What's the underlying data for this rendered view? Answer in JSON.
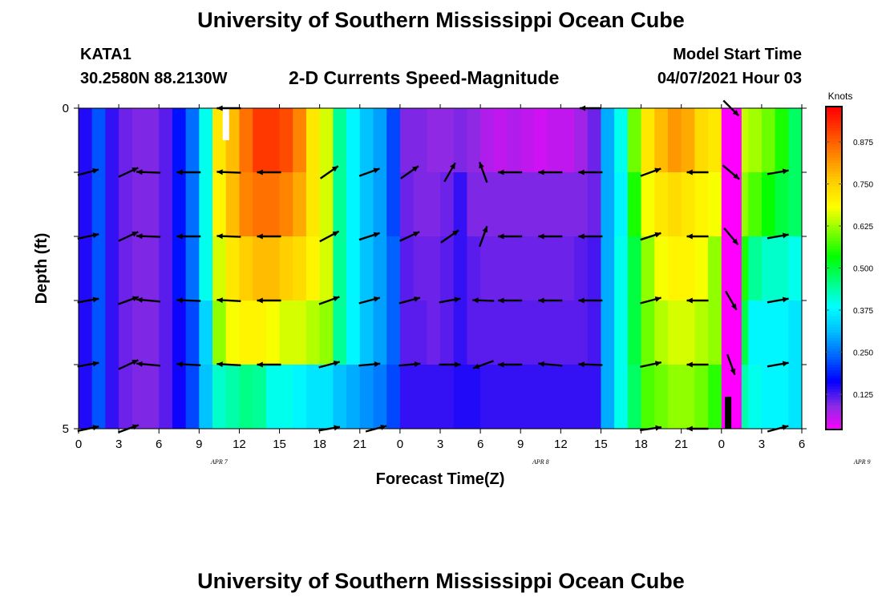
{
  "header": {
    "title": "University of Southern Mississippi Ocean Cube",
    "station": "KATA1",
    "coords": "30.2580N  88.2130W",
    "chart_title": "2-D Currents Speed-Magnitude",
    "model_label": "Model Start Time",
    "model_time": "04/07/2021 Hour 03"
  },
  "footer": {
    "title": "University of Southern Mississippi Ocean Cube"
  },
  "colors": {
    "ramp": [
      "#ff00ff",
      "#8a2be2",
      "#0000ff",
      "#0064ff",
      "#00bfff",
      "#00ffff",
      "#00ff80",
      "#00ff00",
      "#80ff00",
      "#ffff00",
      "#ffd000",
      "#ff8c00",
      "#ff4500",
      "#ff0000"
    ],
    "arrow": "#000000"
  },
  "chart_data": {
    "type": "heatmap",
    "xlabel": "Forecast Time(Z)",
    "ylabel": "Depth (ft)",
    "colorbar_label": "Knots",
    "colorbar_ticks": [
      "0.125",
      "0.250",
      "0.375",
      "0.500",
      "0.625",
      "0.750",
      "0.875"
    ],
    "colorbar_values": [
      0.125,
      0.25,
      0.375,
      0.5,
      0.625,
      0.75,
      0.875
    ],
    "colorbar_range": [
      0.02,
      0.98
    ],
    "x_tick_labels": [
      "0",
      "3",
      "6",
      "9",
      "12",
      "15",
      "18",
      "21",
      "0",
      "3",
      "6",
      "9",
      "12",
      "15",
      "18",
      "21",
      "0",
      "3",
      "6"
    ],
    "date_labels": [
      {
        "text": "APR 7",
        "hour": 10.5
      },
      {
        "text": "APR 8",
        "hour": 34.5
      },
      {
        "text": "APR 9",
        "hour": 58.5
      }
    ],
    "y_tick_labels": [
      "0",
      "5"
    ],
    "xlim": [
      0,
      54
    ],
    "ylim": [
      0,
      5
    ],
    "depth_bands": 5,
    "hours": [
      0,
      1,
      2,
      3,
      4,
      5,
      6,
      7,
      8,
      9,
      10,
      11,
      12,
      13,
      14,
      15,
      16,
      17,
      18,
      19,
      20,
      21,
      22,
      23,
      24,
      25,
      26,
      27,
      28,
      29,
      30,
      31,
      32,
      33,
      34,
      35,
      36,
      37,
      38,
      39,
      40,
      41,
      42,
      43,
      44,
      45,
      46,
      47,
      48,
      49,
      50,
      51,
      52,
      53
    ],
    "speed_knots": [
      [
        0.15,
        0.23,
        0.14,
        0.11,
        0.1,
        0.1,
        0.12,
        0.18,
        0.25,
        0.4,
        0.72,
        0.78,
        0.86,
        0.92,
        0.92,
        0.9,
        0.84,
        0.72,
        0.66,
        0.45,
        0.38,
        0.32,
        0.29,
        0.22,
        0.1,
        0.1,
        0.09,
        0.09,
        0.1,
        0.09,
        0.07,
        0.06,
        0.07,
        0.06,
        0.05,
        0.06,
        0.06,
        0.08,
        0.11,
        0.3,
        0.4,
        0.6,
        0.72,
        0.78,
        0.82,
        0.8,
        0.74,
        0.72,
        0.7,
        0.65,
        0.63,
        0.6,
        0.55,
        0.48
      ],
      [
        0.15,
        0.23,
        0.14,
        0.11,
        0.1,
        0.1,
        0.12,
        0.18,
        0.25,
        0.4,
        0.7,
        0.78,
        0.84,
        0.86,
        0.86,
        0.84,
        0.8,
        0.72,
        0.66,
        0.45,
        0.38,
        0.32,
        0.29,
        0.22,
        0.11,
        0.1,
        0.1,
        0.11,
        0.14,
        0.1,
        0.1,
        0.1,
        0.1,
        0.1,
        0.1,
        0.1,
        0.1,
        0.1,
        0.11,
        0.3,
        0.38,
        0.55,
        0.68,
        0.72,
        0.74,
        0.72,
        0.7,
        0.68,
        0.66,
        0.62,
        0.58,
        0.54,
        0.5,
        0.48
      ],
      [
        0.15,
        0.23,
        0.14,
        0.11,
        0.1,
        0.1,
        0.12,
        0.18,
        0.25,
        0.4,
        0.66,
        0.72,
        0.76,
        0.78,
        0.78,
        0.76,
        0.74,
        0.7,
        0.66,
        0.45,
        0.38,
        0.32,
        0.29,
        0.24,
        0.12,
        0.11,
        0.11,
        0.12,
        0.14,
        0.12,
        0.11,
        0.11,
        0.11,
        0.11,
        0.11,
        0.11,
        0.11,
        0.12,
        0.13,
        0.3,
        0.4,
        0.5,
        0.62,
        0.68,
        0.7,
        0.7,
        0.68,
        0.62,
        0.62,
        0.55,
        0.45,
        0.42,
        0.42,
        0.4
      ],
      [
        0.15,
        0.23,
        0.14,
        0.11,
        0.1,
        0.1,
        0.12,
        0.16,
        0.22,
        0.34,
        0.62,
        0.68,
        0.7,
        0.7,
        0.68,
        0.66,
        0.66,
        0.64,
        0.62,
        0.45,
        0.38,
        0.32,
        0.29,
        0.24,
        0.12,
        0.12,
        0.11,
        0.12,
        0.14,
        0.12,
        0.12,
        0.12,
        0.12,
        0.12,
        0.12,
        0.12,
        0.12,
        0.12,
        0.13,
        0.3,
        0.4,
        0.5,
        0.6,
        0.64,
        0.66,
        0.66,
        0.64,
        0.62,
        0.58,
        0.5,
        0.38,
        0.38,
        0.38,
        0.36
      ],
      [
        0.15,
        0.23,
        0.14,
        0.11,
        0.1,
        0.1,
        0.12,
        0.16,
        0.22,
        0.32,
        0.42,
        0.44,
        0.46,
        0.45,
        0.4,
        0.4,
        0.38,
        0.36,
        0.36,
        0.32,
        0.3,
        0.28,
        0.26,
        0.22,
        0.14,
        0.14,
        0.14,
        0.14,
        0.15,
        0.15,
        0.14,
        0.14,
        0.14,
        0.14,
        0.14,
        0.14,
        0.14,
        0.14,
        0.14,
        0.3,
        0.4,
        0.48,
        0.58,
        0.6,
        0.62,
        0.62,
        0.6,
        0.56,
        0.52,
        0.44,
        0.4,
        0.38,
        0.38,
        0.36
      ]
    ],
    "low_speed_column": {
      "hour_start": 48.0,
      "hour_end": 49.5,
      "speed_knots": 0.02
    },
    "markers": [
      {
        "hour": 11.0,
        "depth_start": 0.0,
        "depth_end": 0.5,
        "color": "#ffffff"
      },
      {
        "hour": 48.5,
        "depth_start": 4.5,
        "depth_end": 5.0,
        "color": "#000000"
      }
    ],
    "vectors": [
      {
        "hour": 0,
        "depth": 1,
        "angle_deg": 15,
        "length": 0.9
      },
      {
        "hour": 0,
        "depth": 2,
        "angle_deg": 12,
        "length": 0.9
      },
      {
        "hour": 0,
        "depth": 3,
        "angle_deg": 10,
        "length": 0.9
      },
      {
        "hour": 0,
        "depth": 4,
        "angle_deg": 10,
        "length": 0.9
      },
      {
        "hour": 0,
        "depth": 5,
        "angle_deg": 12,
        "length": 0.9
      },
      {
        "hour": 3,
        "depth": 1,
        "angle_deg": 25,
        "length": 0.9
      },
      {
        "hour": 3,
        "depth": 2,
        "angle_deg": 25,
        "length": 0.9
      },
      {
        "hour": 3,
        "depth": 3,
        "angle_deg": 20,
        "length": 0.9
      },
      {
        "hour": 3,
        "depth": 4,
        "angle_deg": 25,
        "length": 0.9
      },
      {
        "hour": 3,
        "depth": 5,
        "angle_deg": 20,
        "length": 0.9
      },
      {
        "hour": 4.5,
        "depth": 1,
        "angle_deg": 178,
        "length": 1.0
      },
      {
        "hour": 4.5,
        "depth": 2,
        "angle_deg": 178,
        "length": 1.0
      },
      {
        "hour": 4.5,
        "depth": 3,
        "angle_deg": 175,
        "length": 1.0
      },
      {
        "hour": 4.5,
        "depth": 4,
        "angle_deg": 175,
        "length": 1.0
      },
      {
        "hour": 7.5,
        "depth": 1,
        "angle_deg": 180,
        "length": 1.0
      },
      {
        "hour": 7.5,
        "depth": 2,
        "angle_deg": 180,
        "length": 1.0
      },
      {
        "hour": 7.5,
        "depth": 3,
        "angle_deg": 178,
        "length": 1.0
      },
      {
        "hour": 7.5,
        "depth": 4,
        "angle_deg": 177,
        "length": 1.0
      },
      {
        "hour": 10.5,
        "depth": 0,
        "angle_deg": 180,
        "length": 1.0
      },
      {
        "hour": 10.5,
        "depth": 1,
        "angle_deg": 178,
        "length": 1.0
      },
      {
        "hour": 10.5,
        "depth": 2,
        "angle_deg": 178,
        "length": 1.0
      },
      {
        "hour": 10.5,
        "depth": 3,
        "angle_deg": 177,
        "length": 1.0
      },
      {
        "hour": 10.5,
        "depth": 4,
        "angle_deg": 177,
        "length": 1.0
      },
      {
        "hour": 13.5,
        "depth": 1,
        "angle_deg": 180,
        "length": 1.0
      },
      {
        "hour": 13.5,
        "depth": 2,
        "angle_deg": 180,
        "length": 1.0
      },
      {
        "hour": 13.5,
        "depth": 3,
        "angle_deg": 180,
        "length": 1.0
      },
      {
        "hour": 13.5,
        "depth": 4,
        "angle_deg": 180,
        "length": 1.0
      },
      {
        "hour": 18,
        "depth": 1,
        "angle_deg": 35,
        "length": 0.9
      },
      {
        "hour": 18,
        "depth": 2,
        "angle_deg": 28,
        "length": 0.9
      },
      {
        "hour": 18,
        "depth": 3,
        "angle_deg": 20,
        "length": 0.9
      },
      {
        "hour": 18,
        "depth": 4,
        "angle_deg": 15,
        "length": 0.9
      },
      {
        "hour": 18,
        "depth": 5,
        "angle_deg": 10,
        "length": 0.9
      },
      {
        "hour": 21,
        "depth": 1,
        "angle_deg": 20,
        "length": 0.9
      },
      {
        "hour": 21,
        "depth": 2,
        "angle_deg": 18,
        "length": 0.9
      },
      {
        "hour": 21,
        "depth": 3,
        "angle_deg": 15,
        "length": 0.9
      },
      {
        "hour": 21,
        "depth": 4,
        "angle_deg": 5,
        "length": 0.9
      },
      {
        "hour": 21.5,
        "depth": 5,
        "angle_deg": 15,
        "length": 0.9
      },
      {
        "hour": 24,
        "depth": 1,
        "angle_deg": 35,
        "length": 0.9
      },
      {
        "hour": 24,
        "depth": 2,
        "angle_deg": 25,
        "length": 0.9
      },
      {
        "hour": 24,
        "depth": 3,
        "angle_deg": 15,
        "length": 0.9
      },
      {
        "hour": 24,
        "depth": 4,
        "angle_deg": 5,
        "length": 0.9
      },
      {
        "hour": 27,
        "depth": 1,
        "angle_deg": 60,
        "length": 0.9
      },
      {
        "hour": 27,
        "depth": 2,
        "angle_deg": 35,
        "length": 0.9
      },
      {
        "hour": 27,
        "depth": 3,
        "angle_deg": 10,
        "length": 0.9
      },
      {
        "hour": 27,
        "depth": 4,
        "angle_deg": 0,
        "length": 0.9
      },
      {
        "hour": 29.5,
        "depth": 1,
        "angle_deg": 110,
        "length": 0.9
      },
      {
        "hour": 29.5,
        "depth": 2,
        "angle_deg": 70,
        "length": 0.9
      },
      {
        "hour": 29.5,
        "depth": 3,
        "angle_deg": 178,
        "length": 0.9
      },
      {
        "hour": 29.5,
        "depth": 4,
        "angle_deg": 200,
        "length": 0.9
      },
      {
        "hour": 31.5,
        "depth": 1,
        "angle_deg": 180,
        "length": 1.0
      },
      {
        "hour": 31.5,
        "depth": 2,
        "angle_deg": 180,
        "length": 1.0
      },
      {
        "hour": 31.5,
        "depth": 3,
        "angle_deg": 180,
        "length": 1.0
      },
      {
        "hour": 31.5,
        "depth": 4,
        "angle_deg": 180,
        "length": 1.0
      },
      {
        "hour": 34.5,
        "depth": 1,
        "angle_deg": 180,
        "length": 1.0
      },
      {
        "hour": 34.5,
        "depth": 2,
        "angle_deg": 180,
        "length": 1.0
      },
      {
        "hour": 34.5,
        "depth": 3,
        "angle_deg": 180,
        "length": 1.0
      },
      {
        "hour": 34.5,
        "depth": 4,
        "angle_deg": 175,
        "length": 1.0
      },
      {
        "hour": 37.5,
        "depth": 0,
        "angle_deg": 180,
        "length": 0.9
      },
      {
        "hour": 37.5,
        "depth": 1,
        "angle_deg": 180,
        "length": 1.0
      },
      {
        "hour": 37.5,
        "depth": 2,
        "angle_deg": 180,
        "length": 1.0
      },
      {
        "hour": 37.5,
        "depth": 3,
        "angle_deg": 180,
        "length": 1.0
      },
      {
        "hour": 37.5,
        "depth": 4,
        "angle_deg": 178,
        "length": 1.0
      },
      {
        "hour": 42,
        "depth": 1,
        "angle_deg": 20,
        "length": 0.9
      },
      {
        "hour": 42,
        "depth": 2,
        "angle_deg": 18,
        "length": 0.9
      },
      {
        "hour": 42,
        "depth": 3,
        "angle_deg": 15,
        "length": 0.9
      },
      {
        "hour": 42,
        "depth": 4,
        "angle_deg": 12,
        "length": 0.9
      },
      {
        "hour": 42,
        "depth": 5,
        "angle_deg": 8,
        "length": 0.9
      },
      {
        "hour": 45.5,
        "depth": 1,
        "angle_deg": 180,
        "length": 0.9
      },
      {
        "hour": 45.5,
        "depth": 2,
        "angle_deg": 180,
        "length": 0.9
      },
      {
        "hour": 45.5,
        "depth": 3,
        "angle_deg": 180,
        "length": 0.9
      },
      {
        "hour": 45.5,
        "depth": 4,
        "angle_deg": 180,
        "length": 0.9
      },
      {
        "hour": 45.5,
        "depth": 5,
        "angle_deg": 180,
        "length": 0.9
      },
      {
        "hour": 48,
        "depth": 0,
        "angle_deg": 315,
        "length": 0.9
      },
      {
        "hour": 48,
        "depth": 1,
        "angle_deg": 320,
        "length": 0.9
      },
      {
        "hour": 48,
        "depth": 2,
        "angle_deg": 310,
        "length": 0.9
      },
      {
        "hour": 48,
        "depth": 3,
        "angle_deg": 300,
        "length": 0.9
      },
      {
        "hour": 48,
        "depth": 4,
        "angle_deg": 290,
        "length": 0.9
      },
      {
        "hour": 51.5,
        "depth": 1,
        "angle_deg": 10,
        "length": 0.9
      },
      {
        "hour": 51.5,
        "depth": 2,
        "angle_deg": 10,
        "length": 0.9
      },
      {
        "hour": 51.5,
        "depth": 3,
        "angle_deg": 10,
        "length": 0.9
      },
      {
        "hour": 51.5,
        "depth": 4,
        "angle_deg": 10,
        "length": 0.9
      },
      {
        "hour": 51.5,
        "depth": 5,
        "angle_deg": 15,
        "length": 0.9
      }
    ]
  }
}
